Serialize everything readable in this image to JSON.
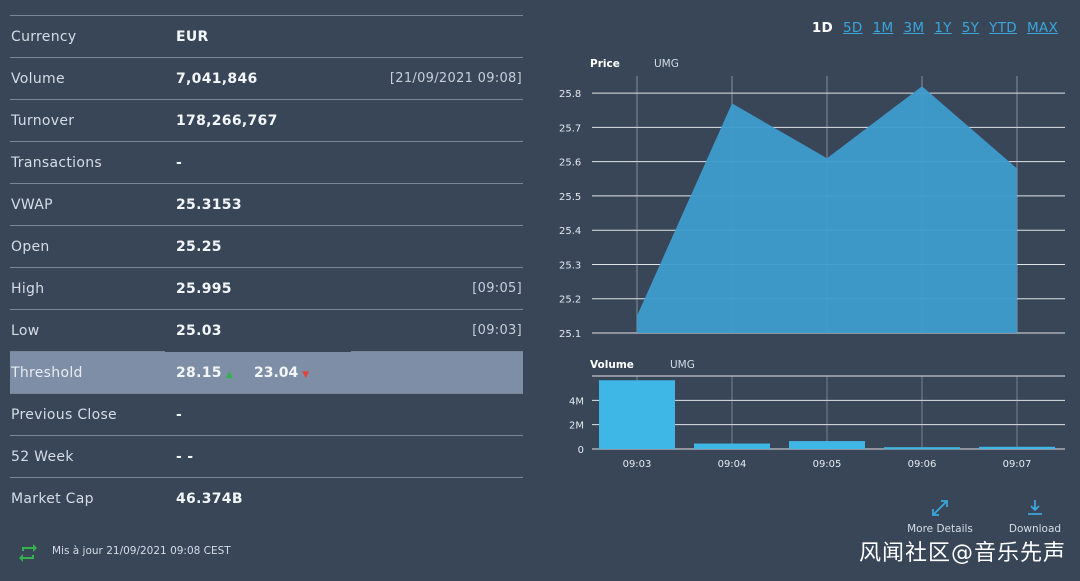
{
  "stats": [
    {
      "label": "Currency",
      "value": "EUR",
      "time": ""
    },
    {
      "label": "Volume",
      "value": "7,041,846",
      "time": "[21/09/2021 09:08]"
    },
    {
      "label": "Turnover",
      "value": "178,266,767",
      "time": ""
    },
    {
      "label": "Transactions",
      "value": "-",
      "time": ""
    },
    {
      "label": "VWAP",
      "value": "25.3153",
      "time": ""
    },
    {
      "label": "Open",
      "value": "25.25",
      "time": ""
    },
    {
      "label": "High",
      "value": "25.995",
      "time": "[09:05]"
    },
    {
      "label": "Low",
      "value": "25.03",
      "time": "[09:03]"
    },
    {
      "label": "Threshold",
      "value": "28.15",
      "value2": "23.04",
      "time": ""
    },
    {
      "label": "Previous Close",
      "value": "-",
      "time": ""
    },
    {
      "label": "52 Week",
      "value": "-  -",
      "time": ""
    },
    {
      "label": "Market Cap",
      "value": "46.374B",
      "time": ""
    }
  ],
  "footer": {
    "updated": "Mis à jour 21/09/2021 09:08 CEST"
  },
  "ranges": [
    "1D",
    "5D",
    "1M",
    "3M",
    "1Y",
    "5Y",
    "YTD",
    "MAX"
  ],
  "active_range": "1D",
  "actions": {
    "more_details": "More Details",
    "download": "Download"
  },
  "watermark": "风闻社区@音乐先声",
  "colors": {
    "accent": "#3aa6db",
    "area": "#3d9ccd",
    "bar": "#3eb7e6",
    "up": "#34b24c",
    "down": "#e0443a"
  },
  "chart_data": [
    {
      "type": "area",
      "title": "Price",
      "subtitle": "UMG",
      "x": [
        "09:03",
        "09:04",
        "09:05",
        "09:06",
        "09:07"
      ],
      "values": [
        25.15,
        25.77,
        25.61,
        25.82,
        25.58
      ],
      "ylim": [
        25.1,
        25.85
      ],
      "yticks": [
        "25.8",
        "25.7",
        "25.6",
        "25.5",
        "25.4",
        "25.3",
        "25.2",
        "25.1"
      ],
      "grid": true
    },
    {
      "type": "bar",
      "title": "Volume",
      "subtitle": "UMG",
      "categories": [
        "09:03",
        "09:04",
        "09:05",
        "09:06",
        "09:07"
      ],
      "values": [
        5650000,
        450000,
        650000,
        150000,
        180000
      ],
      "ylim": [
        0,
        6000000
      ],
      "yticks": [
        "4M",
        "2M",
        "0"
      ],
      "grid": true
    }
  ]
}
